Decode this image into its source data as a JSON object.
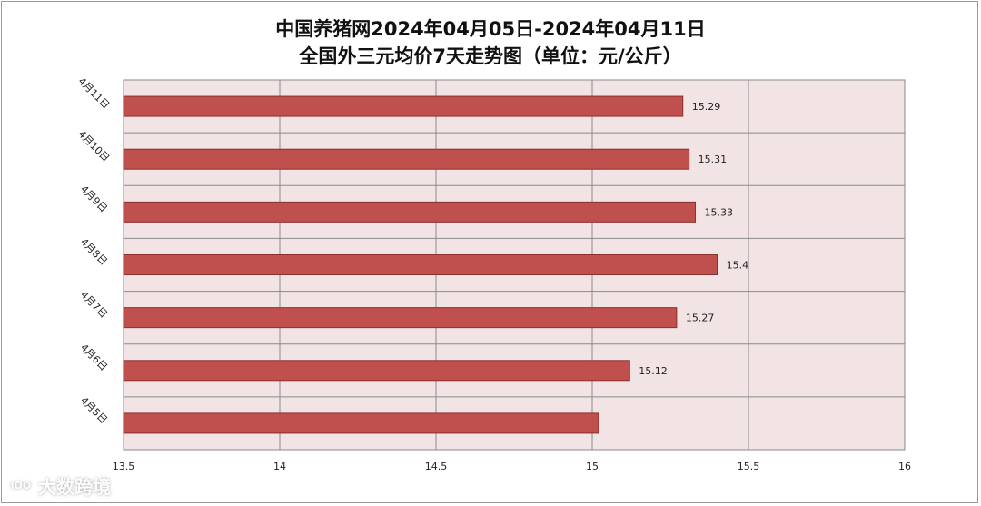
{
  "chart_data": {
    "type": "bar",
    "orientation": "horizontal",
    "title": "中国养猪网2024年04月05日-2024年04月11日",
    "subtitle": "全国外三元均价7天走势图（单位：元/公斤）",
    "categories": [
      "4月11日",
      "4月10日",
      "4月9日",
      "4月8日",
      "4月7日",
      "4月6日",
      "4月5日"
    ],
    "values": [
      15.29,
      15.31,
      15.33,
      15.4,
      15.27,
      15.12,
      15.02
    ],
    "data_labels": [
      "15.29",
      "15.31",
      "15.33",
      "15.4",
      "15.27",
      "15.12",
      ""
    ],
    "xlim": [
      13.5,
      16
    ],
    "x_ticks": [
      "13.5",
      "14",
      "14.5",
      "15",
      "15.5",
      "16"
    ],
    "x_tick_values": [
      13.5,
      14,
      14.5,
      15,
      15.5,
      16
    ],
    "grid": true,
    "bar_color": "#c0504d",
    "bar_border_color": "#8c2f2d",
    "plot_background": "#f2e4e4"
  },
  "watermark": {
    "icon": "logo-icon",
    "icon_text": "lOO",
    "text": "大数跨境"
  }
}
